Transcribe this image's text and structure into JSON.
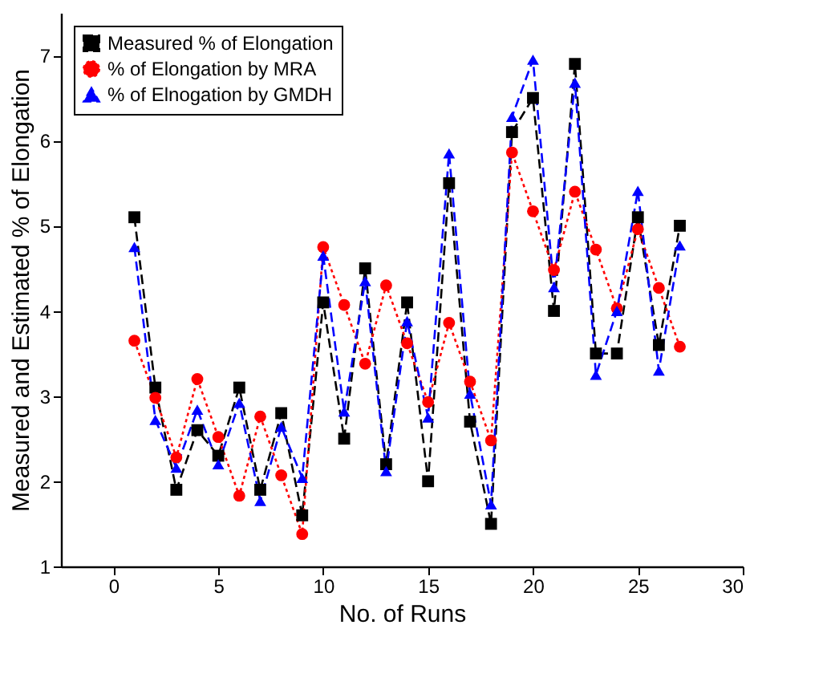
{
  "chart_data": {
    "type": "line",
    "xlabel": "No. of Runs",
    "ylabel": "Measured and Estimated % of Elongation",
    "x": [
      1,
      2,
      3,
      4,
      5,
      6,
      7,
      8,
      9,
      10,
      11,
      12,
      13,
      14,
      15,
      16,
      17,
      18,
      19,
      20,
      21,
      22,
      23,
      24,
      25,
      26,
      27
    ],
    "xlim": [
      -2.5,
      30
    ],
    "xticks": [
      0,
      5,
      10,
      15,
      20,
      25,
      30
    ],
    "ylim": [
      1,
      7.5
    ],
    "yticks": [
      1,
      2,
      3,
      4,
      5,
      6,
      7
    ],
    "grid": false,
    "legend": "top left",
    "series": [
      {
        "name": "Measured % of Elongation",
        "color": "#000000",
        "marker": "square",
        "line_style": "dashed",
        "values": [
          5.1,
          3.1,
          1.9,
          2.6,
          2.3,
          3.1,
          1.9,
          2.8,
          1.6,
          4.1,
          2.5,
          4.5,
          2.2,
          4.1,
          2.0,
          5.5,
          2.7,
          1.5,
          6.1,
          6.5,
          4.0,
          6.9,
          3.5,
          3.5,
          5.1,
          3.6,
          5.0
        ]
      },
      {
        "name": "% of Elongation by MRA",
        "color": "#ff0000",
        "marker": "circle",
        "line_style": "dotted",
        "values": [
          3.65,
          2.98,
          2.28,
          3.2,
          2.52,
          1.83,
          2.76,
          2.07,
          1.38,
          4.75,
          4.07,
          3.38,
          4.3,
          3.62,
          2.93,
          3.86,
          3.17,
          2.48,
          5.86,
          5.17,
          4.48,
          5.4,
          4.72,
          4.03,
          4.96,
          4.27,
          3.58
        ]
      },
      {
        "name": "% of Elnogation by GMDH",
        "color": "#0000ff",
        "marker": "triangle",
        "line_style": "dashed",
        "values": [
          4.75,
          2.72,
          2.16,
          2.84,
          2.2,
          2.92,
          1.77,
          2.64,
          2.04,
          4.65,
          2.82,
          4.35,
          2.12,
          3.88,
          2.75,
          5.85,
          3.03,
          1.73,
          6.28,
          6.95,
          4.28,
          6.68,
          3.25,
          4.0,
          5.41,
          3.3,
          4.77
        ]
      }
    ]
  }
}
